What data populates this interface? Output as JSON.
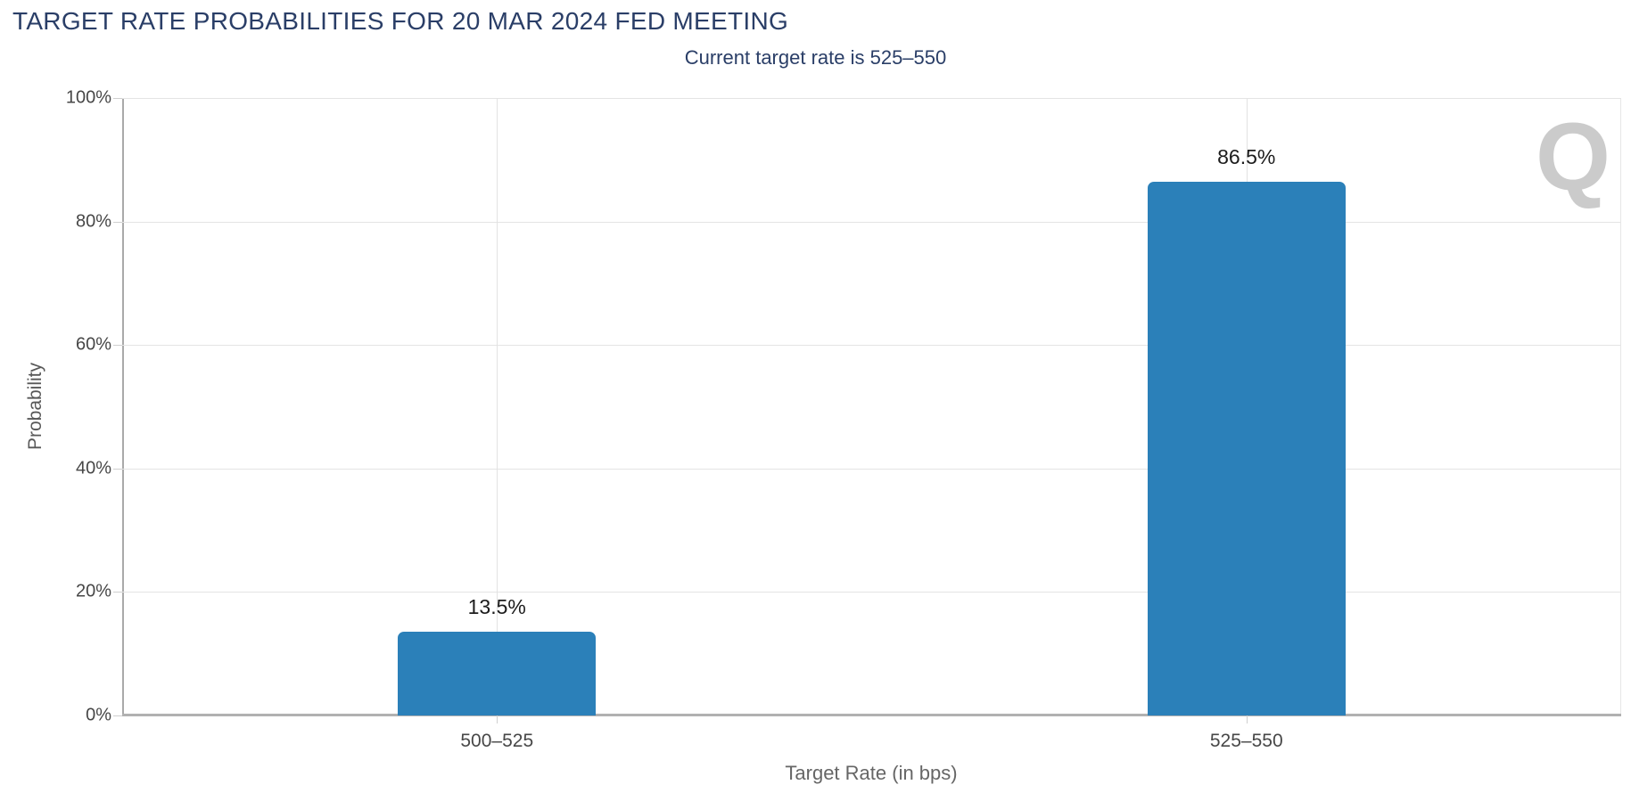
{
  "page": {
    "title": "TARGET RATE PROBABILITIES FOR 20 MAR 2024 FED MEETING",
    "subtitle": "Current target rate is 525–550"
  },
  "chart_data": {
    "type": "bar",
    "title": "TARGET RATE PROBABILITIES FOR 20 MAR 2024 FED MEETING",
    "subtitle": "Current target rate is 525–550",
    "categories": [
      "500–525",
      "525–550"
    ],
    "values": [
      13.5,
      86.5
    ],
    "value_labels": [
      "13.5%",
      "86.5%"
    ],
    "xlabel": "Target Rate (in bps)",
    "ylabel": "Probability",
    "ylim": [
      0,
      100
    ],
    "yticks": [
      0,
      20,
      40,
      60,
      80,
      100
    ],
    "ytick_labels": [
      "0%",
      "20%",
      "40%",
      "60%",
      "80%",
      "100%"
    ],
    "grid": true,
    "legend": false,
    "bar_color": "#2b80b9"
  },
  "watermark": {
    "letter": "Q"
  },
  "colors": {
    "title_navy": "#2a3e67",
    "bar_blue": "#2b80b9",
    "gridline": "#e4e4e4",
    "axis_line": "#b1b1b1",
    "tick_label": "#474747",
    "axis_title": "#666666",
    "watermark_gray": "#c7c7c7",
    "watermark_blue_top": "#8fc3ec",
    "watermark_blue_bottom": "#b5ecf7"
  }
}
